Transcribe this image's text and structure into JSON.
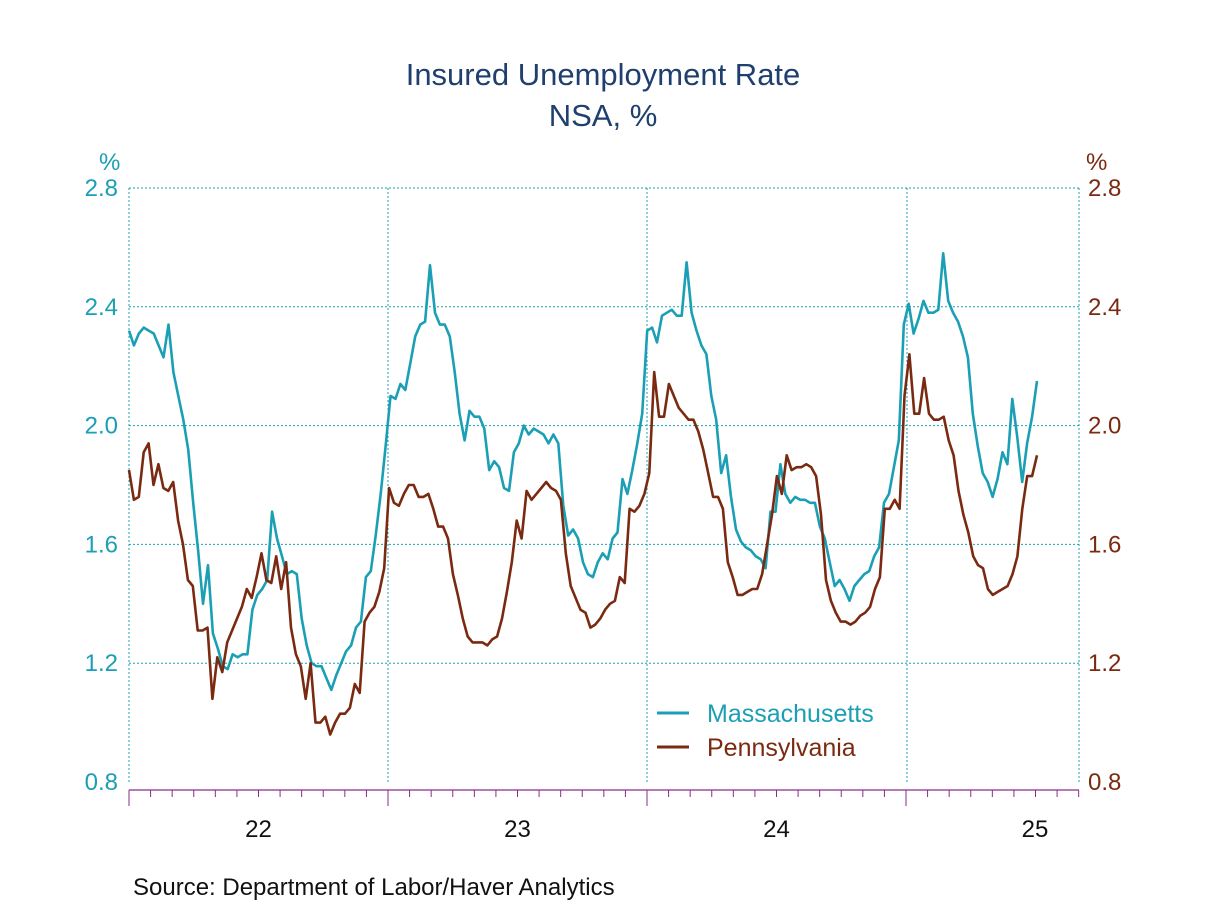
{
  "colors": {
    "left_axis": "#1a9fb5",
    "right_axis": "#7a2a10",
    "grid": "#1a9fb5",
    "frame": "#8b2a8b"
  },
  "chart_data": {
    "type": "line",
    "title": "Insured Unemployment Rate",
    "subtitle": "NSA, %",
    "left_unit": "%",
    "right_unit": "%",
    "ylim": [
      0.8,
      2.8
    ],
    "yticks": [
      "0.8",
      "1.2",
      "1.6",
      "2.0",
      "2.4",
      "2.8"
    ],
    "x_tick_labels": [
      "22",
      "23",
      "24",
      "25"
    ],
    "legend_position": "bottom-right",
    "grid": true,
    "source": "Source:  Department of Labor/Haver Analytics",
    "series": [
      {
        "name": "Massachusetts",
        "color": "#1a9fb5",
        "values": [
          2.32,
          2.27,
          2.31,
          2.33,
          2.32,
          2.31,
          2.27,
          2.23,
          2.34,
          2.18,
          2.1,
          2.02,
          1.92,
          1.74,
          1.58,
          1.4,
          1.53,
          1.3,
          1.25,
          1.19,
          1.18,
          1.23,
          1.22,
          1.23,
          1.23,
          1.38,
          1.43,
          1.45,
          1.48,
          1.71,
          1.62,
          1.56,
          1.5,
          1.51,
          1.5,
          1.35,
          1.26,
          1.2,
          1.19,
          1.19,
          1.15,
          1.11,
          1.16,
          1.2,
          1.24,
          1.26,
          1.32,
          1.34,
          1.49,
          1.51,
          1.63,
          1.77,
          1.93,
          2.1,
          2.09,
          2.14,
          2.12,
          2.21,
          2.3,
          2.34,
          2.35,
          2.54,
          2.38,
          2.34,
          2.34,
          2.3,
          2.18,
          2.04,
          1.95,
          2.05,
          2.03,
          2.03,
          1.99,
          1.85,
          1.88,
          1.86,
          1.79,
          1.78,
          1.91,
          1.94,
          2.0,
          1.97,
          1.99,
          1.98,
          1.97,
          1.94,
          1.97,
          1.94,
          1.73,
          1.63,
          1.65,
          1.62,
          1.54,
          1.5,
          1.49,
          1.54,
          1.57,
          1.55,
          1.62,
          1.64,
          1.82,
          1.77,
          1.85,
          1.94,
          2.04,
          2.32,
          2.33,
          2.28,
          2.37,
          2.38,
          2.39,
          2.37,
          2.37,
          2.55,
          2.38,
          2.32,
          2.27,
          2.24,
          2.1,
          2.02,
          1.84,
          1.9,
          1.76,
          1.65,
          1.61,
          1.59,
          1.58,
          1.56,
          1.55,
          1.52,
          1.71,
          1.71,
          1.87,
          1.77,
          1.74,
          1.76,
          1.75,
          1.75,
          1.74,
          1.74,
          1.66,
          1.62,
          1.54,
          1.46,
          1.48,
          1.45,
          1.41,
          1.46,
          1.48,
          1.5,
          1.51,
          1.56,
          1.59,
          1.74,
          1.77,
          1.86,
          1.95,
          2.34,
          2.41,
          2.31,
          2.36,
          2.42,
          2.38,
          2.38,
          2.39,
          2.58,
          2.42,
          2.38,
          2.35,
          2.3,
          2.23,
          2.04,
          1.93,
          1.84,
          1.81,
          1.76,
          1.82,
          1.91,
          1.87,
          2.09,
          1.96,
          1.81,
          1.94,
          2.03,
          2.15
        ]
      },
      {
        "name": "Pennsylvania",
        "color": "#7a2a10",
        "values": [
          1.85,
          1.75,
          1.76,
          1.91,
          1.94,
          1.8,
          1.87,
          1.79,
          1.78,
          1.81,
          1.68,
          1.6,
          1.48,
          1.46,
          1.31,
          1.31,
          1.32,
          1.08,
          1.22,
          1.17,
          1.27,
          1.31,
          1.35,
          1.39,
          1.45,
          1.42,
          1.49,
          1.57,
          1.48,
          1.47,
          1.56,
          1.45,
          1.54,
          1.32,
          1.23,
          1.19,
          1.08,
          1.2,
          1.0,
          1.0,
          1.02,
          0.96,
          1.0,
          1.03,
          1.03,
          1.05,
          1.13,
          1.1,
          1.34,
          1.37,
          1.39,
          1.44,
          1.52,
          1.79,
          1.74,
          1.73,
          1.77,
          1.8,
          1.8,
          1.76,
          1.76,
          1.77,
          1.72,
          1.66,
          1.66,
          1.62,
          1.5,
          1.43,
          1.35,
          1.29,
          1.27,
          1.27,
          1.27,
          1.26,
          1.28,
          1.29,
          1.35,
          1.44,
          1.54,
          1.68,
          1.62,
          1.78,
          1.75,
          1.77,
          1.79,
          1.81,
          1.79,
          1.78,
          1.75,
          1.57,
          1.46,
          1.42,
          1.38,
          1.37,
          1.32,
          1.33,
          1.35,
          1.38,
          1.4,
          1.41,
          1.49,
          1.47,
          1.72,
          1.71,
          1.73,
          1.77,
          1.84,
          2.18,
          2.03,
          2.03,
          2.14,
          2.1,
          2.06,
          2.04,
          2.02,
          2.02,
          1.98,
          1.92,
          1.84,
          1.76,
          1.76,
          1.72,
          1.54,
          1.49,
          1.43,
          1.43,
          1.44,
          1.45,
          1.45,
          1.5,
          1.6,
          1.7,
          1.83,
          1.77,
          1.9,
          1.85,
          1.86,
          1.86,
          1.87,
          1.86,
          1.83,
          1.7,
          1.48,
          1.41,
          1.37,
          1.34,
          1.34,
          1.33,
          1.34,
          1.36,
          1.37,
          1.39,
          1.45,
          1.49,
          1.72,
          1.72,
          1.75,
          1.72,
          2.1,
          2.24,
          2.04,
          2.04,
          2.16,
          2.04,
          2.02,
          2.02,
          2.03,
          1.95,
          1.9,
          1.78,
          1.7,
          1.64,
          1.56,
          1.53,
          1.52,
          1.45,
          1.43,
          1.44,
          1.45,
          1.46,
          1.5,
          1.56,
          1.72,
          1.83,
          1.83,
          1.9
        ]
      }
    ]
  }
}
